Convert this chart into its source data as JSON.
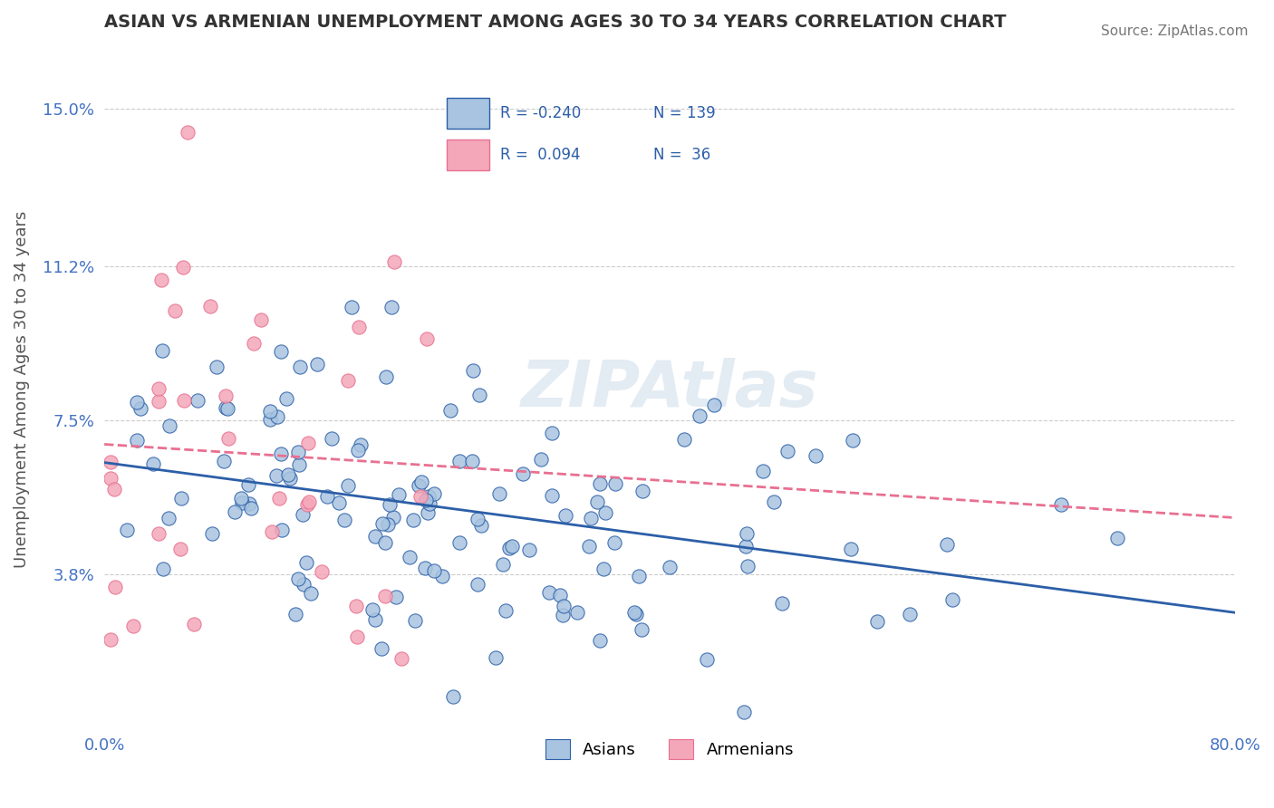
{
  "title": "ASIAN VS ARMENIAN UNEMPLOYMENT AMONG AGES 30 TO 34 YEARS CORRELATION CHART",
  "source": "Source: ZipAtlas.com",
  "xlabel": "",
  "ylabel": "Unemployment Among Ages 30 to 34 years",
  "xlim": [
    0.0,
    0.8
  ],
  "ylim": [
    0.0,
    0.165
  ],
  "yticks": [
    0.038,
    0.075,
    0.112,
    0.15
  ],
  "ytick_labels": [
    "3.8%",
    "7.5%",
    "11.2%",
    "15.0%"
  ],
  "xticks": [
    0.0,
    0.1,
    0.2,
    0.3,
    0.4,
    0.5,
    0.6,
    0.7,
    0.8
  ],
  "xtick_labels": [
    "0.0%",
    "",
    "",
    "",
    "",
    "",
    "",
    "",
    "80.0%"
  ],
  "asian_color": "#a8c4e0",
  "armenian_color": "#f4a7b9",
  "asian_line_color": "#2c5fa8",
  "armenian_line_color": "#e87090",
  "legend_asian_r": "-0.240",
  "legend_asian_n": "139",
  "legend_armenian_r": "0.094",
  "legend_armenian_n": "36",
  "legend_asian_label": "Asians",
  "legend_armenian_label": "Armenians",
  "watermark": "ZIPAtlas",
  "background_color": "#ffffff",
  "grid_color": "#cccccc",
  "title_color": "#333333",
  "axis_color": "#4472c4",
  "asian_seed": 42,
  "armenian_seed": 7,
  "asian_R": -0.24,
  "asian_N": 139,
  "armenian_R": 0.094,
  "armenian_N": 36
}
